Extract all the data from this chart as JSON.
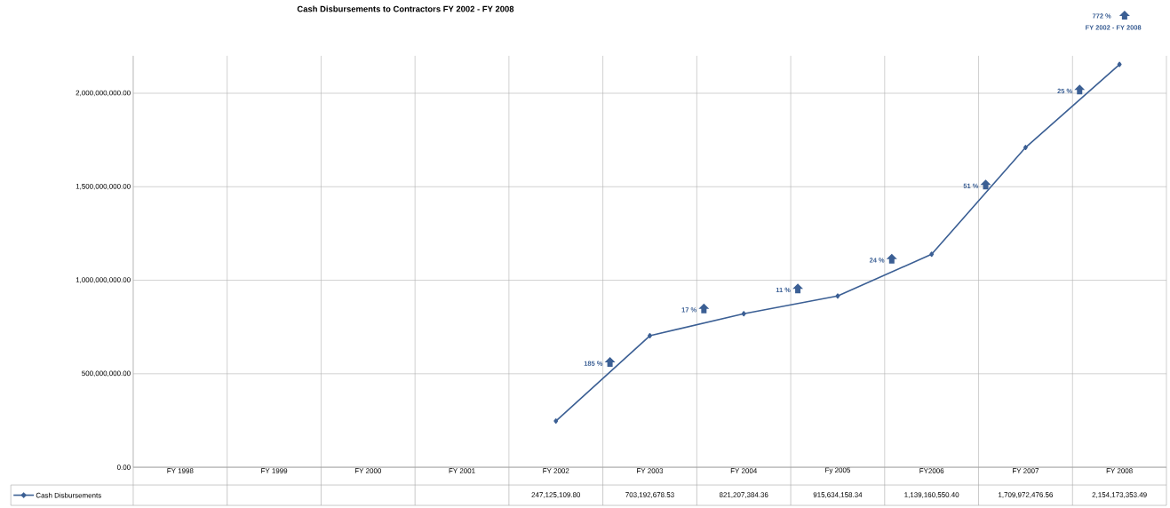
{
  "chart_data": {
    "type": "line",
    "title": "Cash Disbursements to Contractors FY 2002 - FY 2008",
    "categories": [
      "FY 1998",
      "FY 1999",
      "FY 2000",
      "FY 2001",
      "FY 2002",
      "FY 2003",
      "FY 2004",
      "Fy 2005",
      "FY2006",
      "FY 2007",
      "FY 2008"
    ],
    "series": [
      {
        "name": "Cash Disbursements",
        "color": "#3b5f94",
        "values": [
          null,
          null,
          null,
          null,
          247125109.8,
          703192678.53,
          821207384.36,
          915634158.34,
          1139160550.4,
          1709972476.56,
          2154173353.49
        ],
        "value_labels": [
          null,
          null,
          null,
          null,
          "247,125,109.80",
          "703,192,678.53",
          "821,207,384.36",
          "915,634,158.34",
          "1,139,160,550.40",
          "1,709,972,476.56",
          "2,154,173,353.49"
        ]
      }
    ],
    "ylim": [
      0,
      2200000000
    ],
    "yticks": [
      {
        "value": 0,
        "label": "0.00"
      },
      {
        "value": 500000000,
        "label": "500,000,000.00"
      },
      {
        "value": 1000000000,
        "label": "1,000,000,000.00"
      },
      {
        "value": 1500000000,
        "label": "1,500,000,000.00"
      },
      {
        "value": 2000000000,
        "label": "2,000,000,000.00"
      }
    ],
    "annotations": [
      "185 %",
      "17 %",
      "11 %",
      "24 %",
      "51 %",
      "25 %",
      "772 %",
      "FY 2002 - FY 2008"
    ],
    "grid": true,
    "legend": "bottom",
    "marker": "diamond",
    "line_style": "solid"
  }
}
